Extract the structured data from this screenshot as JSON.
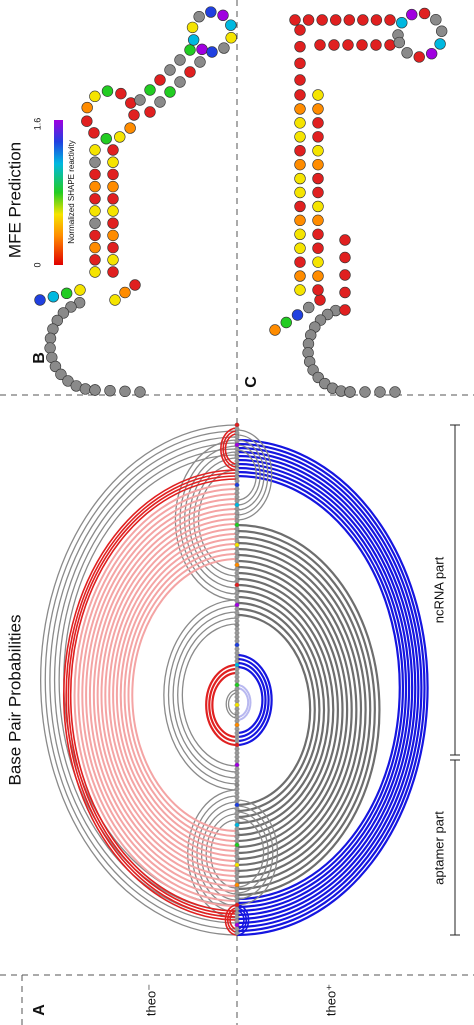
{
  "panel_a": {
    "label": "A",
    "title": "Base Pair Probabilities",
    "conditions": [
      "theo⁻",
      "theo⁺"
    ],
    "regions": [
      "aptamer part",
      "ncRNA part"
    ]
  },
  "panel_b": {
    "label": "B",
    "title": "MFE Prediction",
    "colorbar": {
      "label": "Normalized SHAPE reactivity",
      "min_label": "0",
      "max_label": "1.6"
    }
  },
  "panel_c": {
    "label": "C"
  }
}
